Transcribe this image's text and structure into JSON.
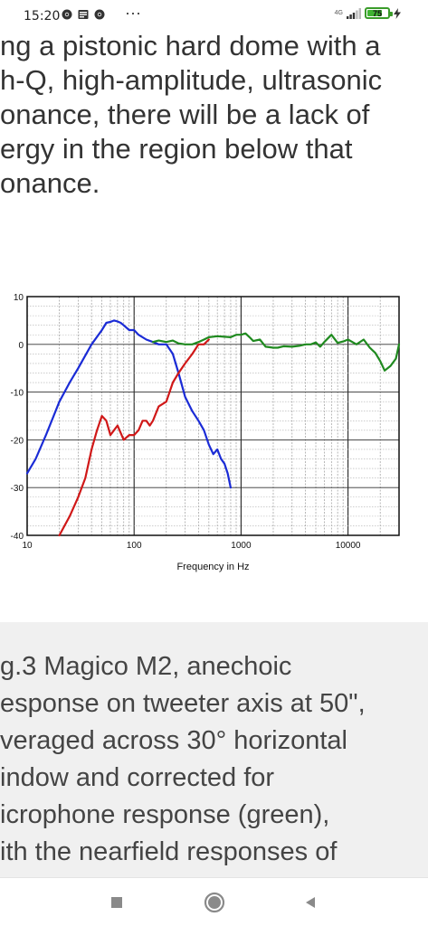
{
  "status_bar": {
    "time": "15:20",
    "network": "4G",
    "battery": "75",
    "battery_level": 0.75,
    "icons": [
      "chrome-icon",
      "news-icon",
      "chrome-icon",
      "more-dots-icon",
      "signal-icon",
      "battery-icon",
      "charging-icon"
    ]
  },
  "article": {
    "lines": [
      "ng a pistonic hard dome with a",
      "h-Q, high-amplitude, ultrasonic",
      "onance, there will be a lack of",
      "ergy in the region below that",
      "onance."
    ]
  },
  "chart_data": {
    "type": "line",
    "xlabel": "Frequency in Hz",
    "ylabel": "",
    "x_scale": "log",
    "xlim": [
      10,
      30000
    ],
    "ylim": [
      -40,
      10
    ],
    "x_ticks": [
      "10",
      "100",
      "1000",
      "10000"
    ],
    "y_ticks": [
      "10",
      "0",
      "-10",
      "-20",
      "-30",
      "-40"
    ],
    "grid": true,
    "series": [
      {
        "color": "#1a2bd6",
        "x": [
          10,
          12,
          15,
          20,
          25,
          30,
          40,
          50,
          55,
          60,
          65,
          70,
          75,
          80,
          90,
          100,
          110,
          130,
          150,
          170,
          200,
          230,
          260,
          300,
          350,
          400,
          450,
          500,
          550,
          600,
          650,
          700,
          750,
          800
        ],
        "y": [
          -27,
          -24,
          -19,
          -12,
          -8,
          -5,
          0,
          3,
          4.5,
          4.7,
          5,
          4.8,
          4.5,
          4,
          3,
          3,
          2,
          1,
          0.5,
          0,
          0,
          -2,
          -6,
          -11,
          -14,
          -16,
          -18,
          -21,
          -23,
          -22,
          -24,
          -25,
          -27,
          -30
        ]
      },
      {
        "color": "#d01818",
        "x": [
          20,
          25,
          30,
          35,
          40,
          45,
          50,
          55,
          60,
          70,
          80,
          90,
          100,
          110,
          120,
          130,
          140,
          150,
          170,
          200,
          230,
          260,
          300,
          350,
          400,
          450,
          500
        ],
        "y": [
          -40,
          -36,
          -32,
          -28,
          -22,
          -18,
          -15,
          -16,
          -19,
          -17,
          -20,
          -19,
          -19,
          -18,
          -16,
          -16,
          -17,
          -16,
          -13,
          -12,
          -8,
          -6,
          -4,
          -2,
          0,
          0,
          1
        ]
      },
      {
        "color": "#1f8a1f",
        "x": [
          150,
          170,
          200,
          230,
          260,
          300,
          350,
          400,
          450,
          500,
          600,
          700,
          800,
          900,
          1000,
          1100,
          1200,
          1300,
          1500,
          1700,
          2000,
          2200,
          2500,
          3000,
          3500,
          4000,
          4500,
          5000,
          5500,
          6000,
          7000,
          8000,
          9000,
          10000,
          12000,
          14000,
          16000,
          18000,
          20000,
          22000,
          25000,
          28000,
          30000
        ],
        "y": [
          0.5,
          0.8,
          0.5,
          0.8,
          0.2,
          0,
          0,
          0.5,
          1,
          1.5,
          1.7,
          1.6,
          1.5,
          2,
          2,
          2.3,
          1.5,
          0.7,
          1,
          -0.5,
          -0.7,
          -0.7,
          -0.4,
          -0.5,
          -0.3,
          0,
          0,
          0.4,
          -0.5,
          0.5,
          2,
          0.3,
          0.6,
          1,
          0,
          1,
          -0.7,
          -1.8,
          -3.5,
          -5.5,
          -4.5,
          -3,
          0
        ]
      }
    ]
  },
  "caption": {
    "lines": [
      "g.3 Magico M2, anechoic",
      "esponse on tweeter axis at 50\",",
      "veraged across 30° horizontal",
      "indow and corrected for",
      "icrophone response (green),",
      "ith the nearfield responses of"
    ]
  },
  "nav": {
    "recents": "recents-square-icon",
    "home": "home-circle-icon",
    "back": "back-triangle-icon"
  }
}
